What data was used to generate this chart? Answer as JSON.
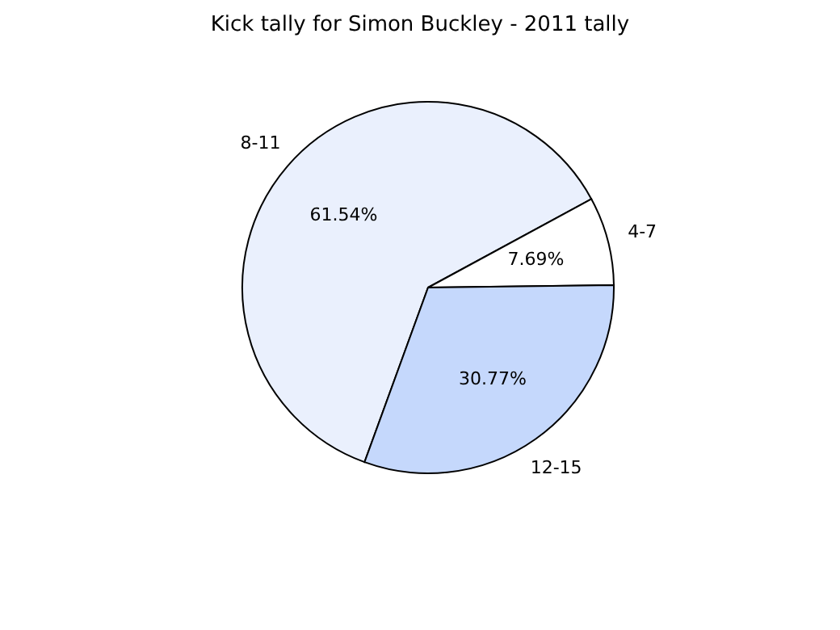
{
  "chart_data": {
    "type": "pie",
    "title": "Kick tally for Simon Buckley - 2011 tally",
    "categories": [
      "8-11",
      "4-7",
      "12-15"
    ],
    "values": [
      61.54,
      7.69,
      30.77
    ],
    "value_labels": [
      "61.54%",
      "7.69%",
      "30.77%"
    ],
    "colors": [
      "#eaf0fd",
      "#ffffff",
      "#c5d8fc"
    ],
    "legend": false
  }
}
